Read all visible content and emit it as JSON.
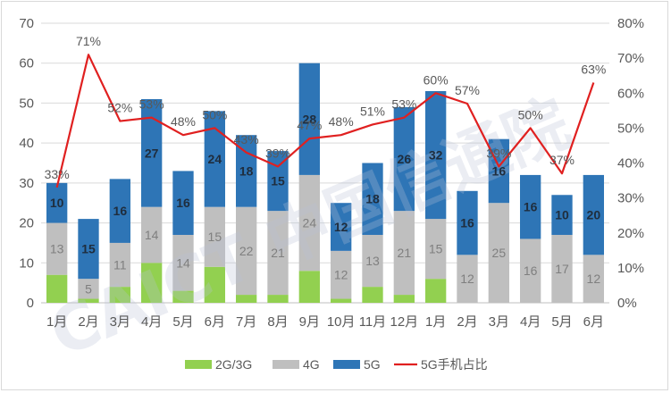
{
  "colors": {
    "g2g3g": "#92d050",
    "g4g": "#bfbfbf",
    "g5g": "#2e75b6",
    "share_line": "#e02020",
    "grid": "#d9d9d9",
    "label_dark": "#1f2d3d",
    "label_mid": "#7f7f7f"
  },
  "watermark": {
    "text": "CAICT 中国信通院"
  },
  "chart_data": {
    "type": "bar",
    "stacked": true,
    "categories": [
      "1月",
      "2月",
      "3月",
      "4月",
      "5月",
      "6月",
      "7月",
      "8月",
      "9月",
      "10月",
      "11月",
      "12月",
      "1月",
      "2月",
      "3月",
      "4月",
      "5月",
      "6月"
    ],
    "series": [
      {
        "name": "2G/3G",
        "color": "#92d050",
        "values": [
          7,
          1,
          4,
          10,
          3,
          9,
          2,
          2,
          8,
          1,
          4,
          2,
          6,
          0,
          0,
          0,
          0,
          0
        ]
      },
      {
        "name": "4G",
        "color": "#bfbfbf",
        "values": [
          13,
          5,
          11,
          14,
          14,
          15,
          22,
          21,
          24,
          12,
          13,
          21,
          15,
          12,
          25,
          16,
          17,
          12
        ]
      },
      {
        "name": "5G",
        "color": "#2e75b6",
        "values": [
          10,
          15,
          16,
          27,
          16,
          24,
          18,
          15,
          28,
          12,
          18,
          26,
          32,
          16,
          16,
          16,
          10,
          20
        ]
      }
    ],
    "line_series": {
      "name": "5G手机占比",
      "color": "#e02020",
      "axis": "right",
      "values": [
        33,
        71,
        52,
        53,
        48,
        50,
        43,
        39,
        47,
        48,
        51,
        53,
        60,
        57,
        39,
        50,
        37,
        63
      ],
      "labels": [
        "33%",
        "71%",
        "52%",
        "53%",
        "48%",
        "50%",
        "43%",
        "39%",
        "47%",
        "48%",
        "51%",
        "53%",
        "60%",
        "57%",
        "39%",
        "50%",
        "37%",
        "63%"
      ]
    },
    "bar_labels": {
      "4G": [
        "13",
        "5",
        "11",
        "14",
        "14",
        "15",
        "22",
        "21",
        "24",
        "12",
        "13",
        "21",
        "15",
        "12",
        "25",
        "16",
        "17",
        "12"
      ],
      "5G": [
        "10",
        "15",
        "16",
        "27",
        "16",
        "24",
        "18",
        "15",
        "28",
        "12",
        "18",
        "26",
        "32",
        "16",
        "16",
        "16",
        "10",
        "20"
      ]
    },
    "left_axis": {
      "ylim": [
        0,
        70
      ],
      "ticks": [
        "0",
        "10",
        "20",
        "30",
        "40",
        "50",
        "60",
        "70"
      ]
    },
    "right_axis": {
      "ylim": [
        0,
        80
      ],
      "ticks": [
        "0%",
        "10%",
        "20%",
        "30%",
        "40%",
        "50%",
        "60%",
        "70%",
        "80%"
      ]
    },
    "legend": {
      "position": "bottom",
      "items": [
        {
          "label": "2G/3G",
          "kind": "bar",
          "color": "#92d050"
        },
        {
          "label": "4G",
          "kind": "bar",
          "color": "#bfbfbf"
        },
        {
          "label": "5G",
          "kind": "bar",
          "color": "#2e75b6"
        },
        {
          "label": "5G手机占比",
          "kind": "line",
          "color": "#e02020"
        }
      ]
    },
    "grid": true
  }
}
